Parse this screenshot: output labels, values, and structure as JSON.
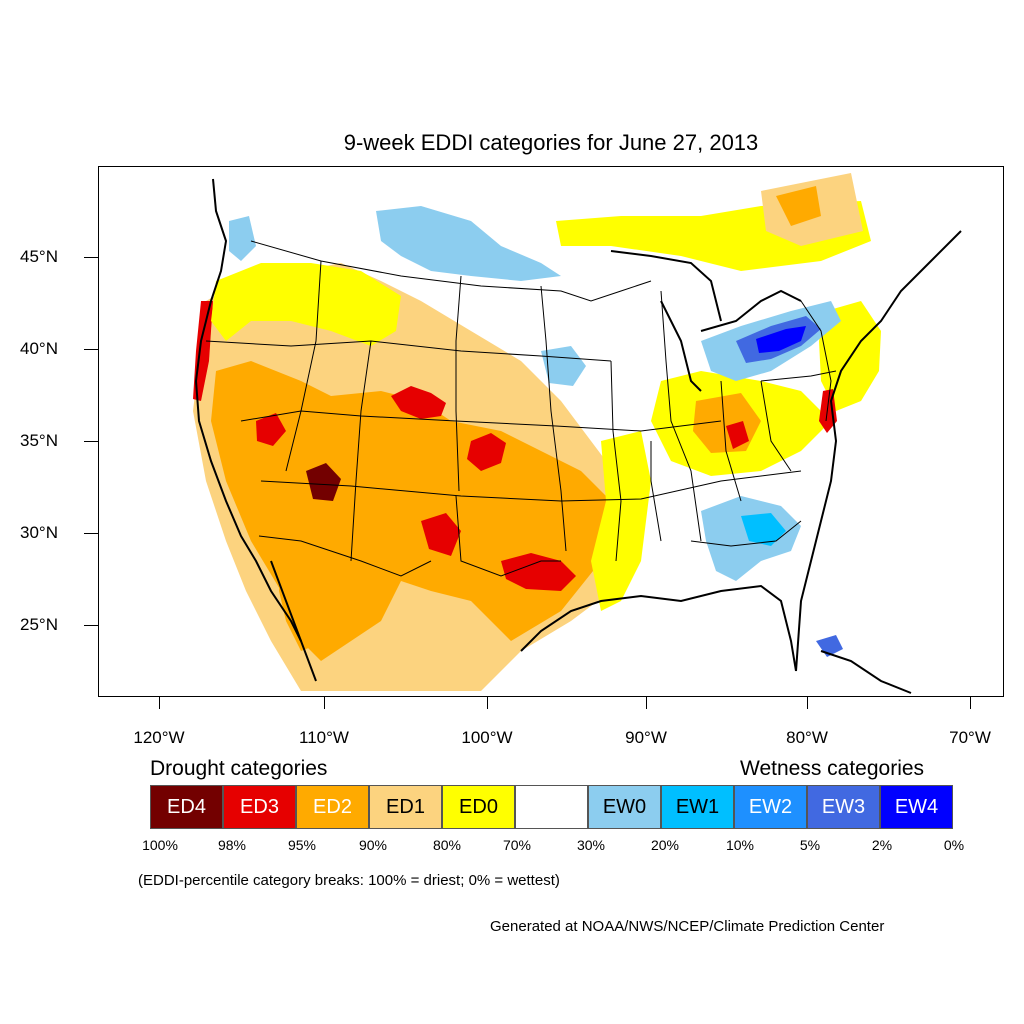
{
  "title": "9-week EDDI categories for June 27, 2013",
  "axes": {
    "lat_labels": [
      "45°N",
      "40°N",
      "35°N",
      "30°N",
      "25°N"
    ],
    "lon_labels": [
      "120°W",
      "110°W",
      "100°W",
      "90°W",
      "80°W",
      "70°W"
    ]
  },
  "legend": {
    "drought_heading": "Drought categories",
    "wetness_heading": "Wetness categories",
    "categories": [
      {
        "label": "ED4",
        "color": "#730000",
        "text_color": "#ffffff"
      },
      {
        "label": "ED3",
        "color": "#e60000",
        "text_color": "#ffffff"
      },
      {
        "label": "ED2",
        "color": "#ffaa00",
        "text_color": "#ffffff"
      },
      {
        "label": "ED1",
        "color": "#fcd37f",
        "text_color": "#000000"
      },
      {
        "label": "ED0",
        "color": "#ffff00",
        "text_color": "#000000"
      },
      {
        "label": "",
        "color": "#ffffff",
        "text_color": "#000000"
      },
      {
        "label": "EW0",
        "color": "#8ccdef",
        "text_color": "#000000"
      },
      {
        "label": "EW1",
        "color": "#00bfff",
        "text_color": "#000000"
      },
      {
        "label": "EW2",
        "color": "#1e90ff",
        "text_color": "#ffffff"
      },
      {
        "label": "EW3",
        "color": "#4169e1",
        "text_color": "#ffffff"
      },
      {
        "label": "EW4",
        "color": "#0000ff",
        "text_color": "#ffffff"
      }
    ],
    "breaks": [
      "100%",
      "98%",
      "95%",
      "90%",
      "80%",
      "70%",
      "30%",
      "20%",
      "10%",
      "5%",
      "2%",
      "0%"
    ]
  },
  "note": "(EDDI-percentile category breaks: 100% = driest; 0% = wettest)",
  "credit": "Generated at NOAA/NWS/NCEP/Climate Prediction Center"
}
